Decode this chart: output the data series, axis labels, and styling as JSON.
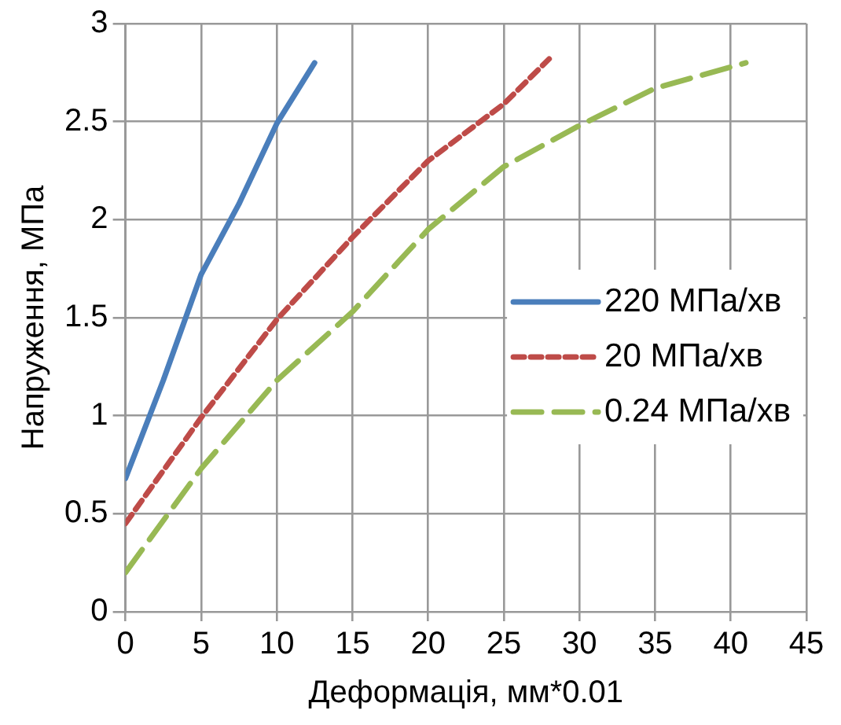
{
  "chart_data": {
    "type": "line",
    "xlabel": "Деформація, мм*0.01",
    "ylabel": "Напруження, МПа",
    "xlim": [
      0,
      45
    ],
    "xticks": [
      0,
      5,
      10,
      15,
      20,
      25,
      30,
      35,
      40,
      45
    ],
    "ylim": [
      0,
      3
    ],
    "yticks": [
      0,
      0.5,
      1,
      1.5,
      2,
      2.5,
      3
    ],
    "grid": true,
    "legend": "right",
    "marker": "none",
    "series": [
      {
        "name": "220 МПа/хв",
        "color": "#4a7ebb",
        "line_style": "solid",
        "x": [
          0,
          2.5,
          5,
          7.5,
          10,
          12.5
        ],
        "values": [
          0.68,
          1.18,
          1.72,
          2.08,
          2.49,
          2.8
        ]
      },
      {
        "name": "20 МПа/хв",
        "color": "#be4b48",
        "line_style": "dotted",
        "x": [
          0,
          5,
          10,
          15,
          20,
          25,
          28
        ],
        "values": [
          0.45,
          0.99,
          1.49,
          1.91,
          2.3,
          2.59,
          2.82
        ]
      },
      {
        "name": "0.24 МПа/хв",
        "color": "#98b954",
        "line_style": "dashed",
        "x": [
          0,
          5,
          10,
          15,
          20,
          25,
          30,
          35,
          41
        ],
        "values": [
          0.2,
          0.73,
          1.18,
          1.53,
          1.95,
          2.27,
          2.48,
          2.67,
          2.8
        ]
      }
    ]
  }
}
